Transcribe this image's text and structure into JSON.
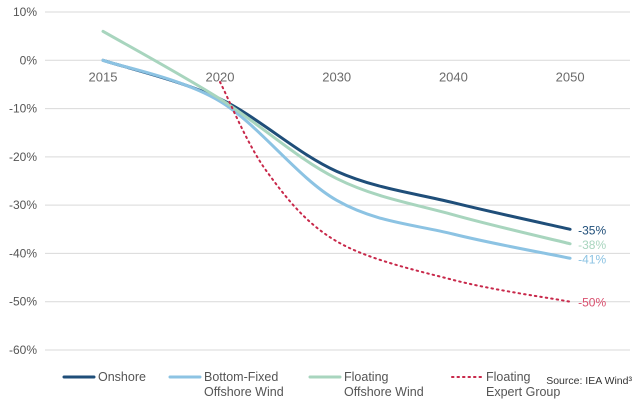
{
  "chart_data": {
    "type": "line",
    "title": "",
    "xlabel": "",
    "ylabel": "",
    "y_ticks": [
      "10%",
      "0%",
      "-10%",
      "-20%",
      "-30%",
      "-40%",
      "-50%",
      "-60%"
    ],
    "x_ticks": [
      "2015",
      "2020",
      "2030",
      "2040",
      "2050"
    ],
    "ylim": [
      -60,
      10
    ],
    "grid": "horizontal",
    "legend_position": "bottom",
    "series": [
      {
        "name": "Onshore",
        "color": "#1f4e79",
        "style": "solid",
        "points": [
          {
            "x": "2015",
            "y": 0
          },
          {
            "x": "2020",
            "y": -8
          },
          {
            "x": "2030",
            "y": -23
          },
          {
            "x": "2040",
            "y": -29.5
          },
          {
            "x": "2050",
            "y": -35
          }
        ],
        "end_label": "-35%",
        "end_label_color": "#1f4e79"
      },
      {
        "name": "Bottom-Fixed\nOffshore Wind",
        "color": "#8cc3e3",
        "style": "solid",
        "points": [
          {
            "x": "2015",
            "y": 0
          },
          {
            "x": "2020",
            "y": -8.5
          },
          {
            "x": "2030",
            "y": -29
          },
          {
            "x": "2040",
            "y": -36
          },
          {
            "x": "2050",
            "y": -41
          }
        ],
        "end_label": "-41%",
        "end_label_color": "#8cc3e3"
      },
      {
        "name": "Floating\nOffshore Wind",
        "color": "#a8d5be",
        "style": "solid",
        "points": [
          {
            "x": "2015",
            "y": 6
          },
          {
            "x": "2020",
            "y": -8
          },
          {
            "x": "2030",
            "y": -24.5
          },
          {
            "x": "2040",
            "y": -32
          },
          {
            "x": "2050",
            "y": -38
          }
        ],
        "end_label": "-38%",
        "end_label_color": "#a8d5be"
      },
      {
        "name": "Floating\nExpert Group",
        "color": "#c8284a",
        "style": "dotted",
        "points": [
          {
            "x": "2020",
            "y": -4.5
          },
          {
            "x": "2024",
            "y": -23
          },
          {
            "x": "2030",
            "y": -37.5
          },
          {
            "x": "2040",
            "y": -45.5
          },
          {
            "x": "2050",
            "y": -50
          }
        ],
        "end_label": "-50%",
        "end_label_color": "#d94f6e"
      }
    ],
    "source": "Source: IEA Wind³"
  }
}
